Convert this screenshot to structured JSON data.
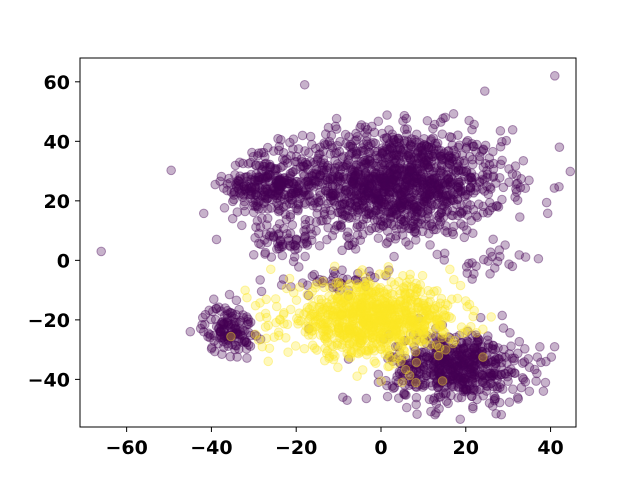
{
  "chart_data": {
    "type": "scatter",
    "title": "",
    "xlabel": "",
    "ylabel": "",
    "xlim": [
      -71,
      46
    ],
    "ylim": [
      -56,
      68
    ],
    "xticks": [
      -60,
      -40,
      -20,
      0,
      20,
      40
    ],
    "yticks": [
      -40,
      -20,
      0,
      20,
      40,
      60
    ],
    "xtick_labels": [
      "−60",
      "−40",
      "−20",
      "0",
      "20",
      "40"
    ],
    "ytick_labels": [
      "−40",
      "−20",
      "0",
      "20",
      "40",
      "60"
    ],
    "grid": false,
    "legend": "none",
    "point_alpha": 0.3,
    "series": [
      {
        "color": "#440154",
        "clusters": [
          {
            "center": [
              3,
              26
            ],
            "spread": [
              13,
              9
            ],
            "count": 1400
          },
          {
            "center": [
              -27,
              25
            ],
            "spread": [
              5,
              5
            ],
            "count": 230
          },
          {
            "center": [
              -23,
              7
            ],
            "spread": [
              4,
              3
            ],
            "count": 60
          },
          {
            "center": [
              -36,
              -23
            ],
            "spread": [
              3,
              4
            ],
            "count": 140
          },
          {
            "center": [
              18,
              -36
            ],
            "spread": [
              8,
              6
            ],
            "count": 600
          },
          {
            "center": [
              -10,
              -7
            ],
            "spread": [
              6,
              2
            ],
            "count": 40
          },
          {
            "center": [
              25,
              0
            ],
            "spread": [
              4,
              3
            ],
            "count": 20
          }
        ],
        "outliers": [
          [
            -66,
            3
          ],
          [
            -18,
            59
          ],
          [
            41,
            62
          ],
          [
            -9,
            -46
          ],
          [
            -8,
            -47
          ],
          [
            31,
            29
          ],
          [
            32,
            23
          ],
          [
            -17,
            -23
          ],
          [
            31,
            -2
          ],
          [
            35,
            -44
          ]
        ]
      },
      {
        "color": "#fde725",
        "clusters": [
          {
            "center": [
              -2,
              -20
            ],
            "spread": [
              10,
              6
            ],
            "count": 900
          }
        ],
        "outliers": [
          [
            -28,
            -29
          ],
          [
            -26,
            -3
          ],
          [
            5,
            -41
          ],
          [
            26,
            -19
          ]
        ]
      }
    ]
  }
}
